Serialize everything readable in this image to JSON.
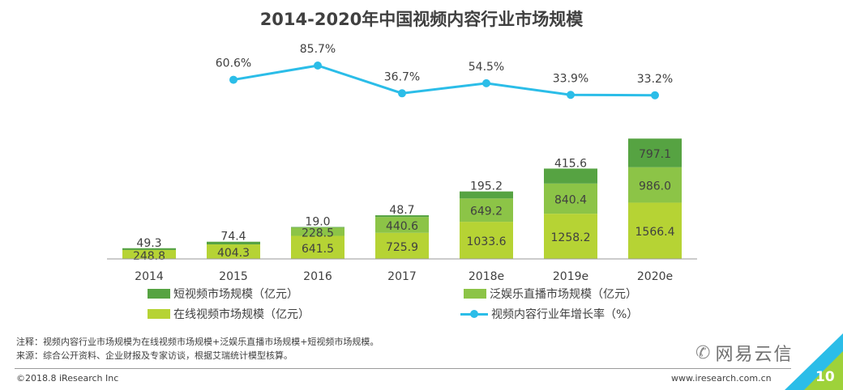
{
  "title": "2014-2020年中国视频内容行业市场规模",
  "chart_data": {
    "type": "bar",
    "stacked": true,
    "title": "2014-2020年中国视频内容行业市场规模",
    "categories": [
      "2014",
      "2015",
      "2016",
      "2017",
      "2018e",
      "2019e",
      "2020e"
    ],
    "series": [
      {
        "name": "在线视频市场规模（亿元）",
        "values": [
          248.8,
          404.3,
          641.5,
          725.9,
          1033.6,
          1258.2,
          1566.4
        ],
        "color": "#b6d334"
      },
      {
        "name": "泛娱乐直播市场规模（亿元）",
        "values": [
          0,
          0,
          228.5,
          440.6,
          649.2,
          840.4,
          986.0
        ],
        "color": "#8cc447"
      },
      {
        "name": "短视频市场规模（亿元）",
        "values": [
          49.3,
          74.4,
          19.0,
          48.7,
          195.2,
          415.6,
          797.1
        ],
        "color": "#56a342"
      }
    ],
    "series_labels": [
      [
        "248.8",
        "404.3",
        "641.5",
        "725.9",
        "1033.6",
        "1258.2",
        "1566.4"
      ],
      [
        "",
        "",
        "228.5",
        "440.6",
        "649.2",
        "840.4",
        "986.0"
      ],
      [
        "49.3",
        "74.4",
        "19.0",
        "48.7",
        "195.2",
        "415.6",
        "797.1"
      ]
    ],
    "line_series": {
      "name": "视频内容行业年增长率（%）",
      "categories": [
        "2015",
        "2016",
        "2017",
        "2018e",
        "2019e",
        "2020e"
      ],
      "values": [
        60.6,
        85.7,
        36.7,
        54.5,
        33.9,
        33.2
      ],
      "labels": [
        "60.6%",
        "85.7%",
        "36.7%",
        "54.5%",
        "33.9%",
        "33.2%"
      ],
      "color": "#2bbde8"
    },
    "xlabel": "",
    "ylabel": "",
    "legend_placement": "bottom",
    "grid": false
  },
  "legend": {
    "short_video": "短视频市场规模（亿元）",
    "live": "泛娱乐直播市场规模（亿元）",
    "online": "在线视频市场规模（亿元）",
    "growth": "视频内容行业年增长率（%）"
  },
  "notes": {
    "note": "注释：视频内容行业市场规模为在线视频市场规模+泛娱乐直播市场规模+短视频市场规模。",
    "source": "来源：综合公开资料、企业财报及专家访谈，根据艾瑞统计模型核算。"
  },
  "footer": {
    "copyright": "©2018.8 iResearch Inc",
    "website": "www.iresearch.com.cn",
    "page_number": "10"
  },
  "watermark": {
    "icon": "wechat-icon",
    "text": "网易云信"
  },
  "colors": {
    "online": "#b6d334",
    "live": "#8cc447",
    "short": "#56a342",
    "line": "#2bbde8",
    "corner_accent": "#2bbde8"
  }
}
